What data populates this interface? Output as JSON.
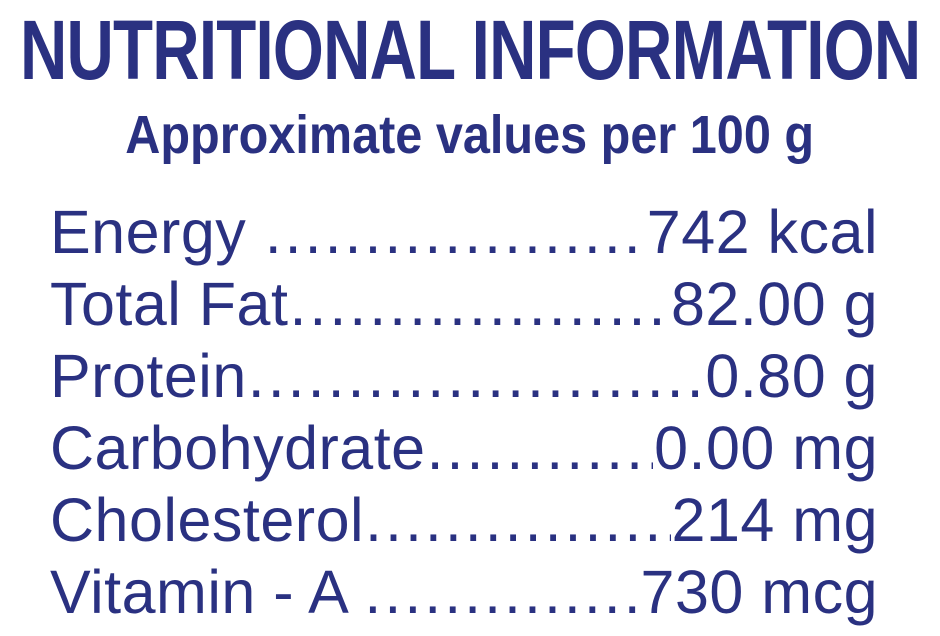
{
  "colors": {
    "text": "#2a3181",
    "background": "#ffffff"
  },
  "header": {
    "title": "NUTRITIONAL INFORMATION",
    "subtitle": "Approximate values per 100 g"
  },
  "rows": [
    {
      "label": "Energy ",
      "dots": "........................................",
      "value": "742 kcal"
    },
    {
      "label": "Total Fat",
      "dots": "........................................",
      "value": "82.00 g"
    },
    {
      "label": "Protein",
      "dots": "........................................",
      "value": "0.80 g"
    },
    {
      "label": "Carbohydrate",
      "dots": "........................................",
      "value": "0.00 mg"
    },
    {
      "label": "Cholesterol",
      "dots": "........................................",
      "value": "214 mg"
    },
    {
      "label": "Vitamin - A ",
      "dots": "........................................",
      "value": "730 mcg"
    }
  ]
}
